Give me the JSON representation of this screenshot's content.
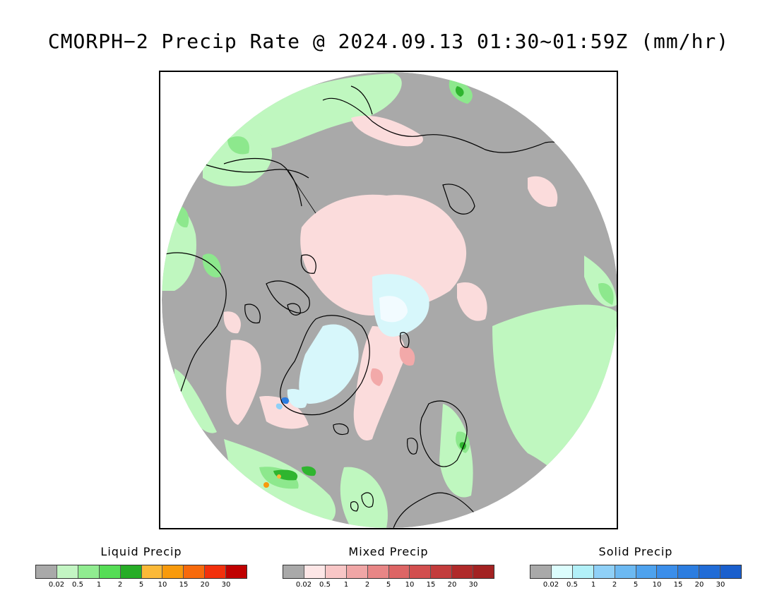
{
  "title": "CMORPH−2 Precip Rate @ 2024.09.13 01:30~01:59Z (mm/hr)",
  "colors": {
    "no_precip": "#a9a9a9",
    "liquid_light": "#bff7bf",
    "liquid_mid": "#8de88d",
    "liquid_dark": "#2fb52f",
    "mixed_light": "#fbdcdc",
    "mixed_mid": "#f2a9a9",
    "solid_light": "#d7f7fb",
    "solid_mid": "#8fd0f7",
    "solid_dark": "#2c7de0",
    "coastline": "#000000"
  },
  "legends": [
    {
      "title": "Liquid Precip",
      "colors": [
        "#a9a9a9",
        "#c3f5c3",
        "#90ec90",
        "#55dd55",
        "#26ad26",
        "#fbb938",
        "#f89a0c",
        "#f76a0c",
        "#f2300c",
        "#c00000"
      ],
      "ticks": [
        "0.02",
        "0.5",
        "1",
        "2",
        "5",
        "10",
        "15",
        "20",
        "30"
      ]
    },
    {
      "title": "Mixed Precip",
      "colors": [
        "#a9a9a9",
        "#fde6e6",
        "#f8c6c6",
        "#f0a6a6",
        "#e88686",
        "#dd6565",
        "#d24f4f",
        "#c33c3c",
        "#b02a2a",
        "#a32222"
      ],
      "ticks": [
        "0.02",
        "0.5",
        "1",
        "2",
        "5",
        "10",
        "15",
        "20",
        "30"
      ]
    },
    {
      "title": "Solid Precip",
      "colors": [
        "#a9a9a9",
        "#dcfdfd",
        "#b2f0f8",
        "#8fd0f7",
        "#6cb9f2",
        "#4ea2ee",
        "#3b8eea",
        "#2c7de0",
        "#216cd7",
        "#1a5fcd"
      ],
      "ticks": [
        "0.02",
        "0.5",
        "1",
        "2",
        "5",
        "10",
        "15",
        "20",
        "30"
      ]
    }
  ]
}
